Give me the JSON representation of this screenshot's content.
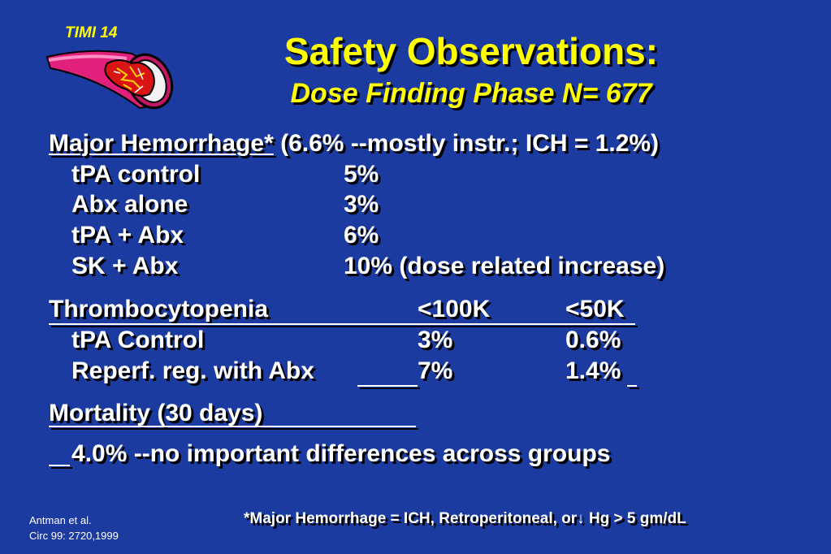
{
  "logo": {
    "label": "TIMI 14",
    "icon": "artery-clot-icon"
  },
  "title": "Safety Observations:",
  "subtitle": "Dose Finding Phase  N= 677",
  "hemorrhage": {
    "heading": "Major Hemorrhage*",
    "note": " (6.6% --mostly instr.;  ICH = 1.2%)",
    "rows": [
      {
        "label": "tPA control",
        "value": "5%"
      },
      {
        "label": "Abx alone",
        "value": "3%"
      },
      {
        "label": "tPA + Abx",
        "value": "6%"
      },
      {
        "label": "SK + Abx",
        "value": "10% (dose related increase)"
      }
    ]
  },
  "thrombo": {
    "heading": "Thrombocytopenia",
    "col1": "<100K",
    "col2": "<50K",
    "rows": [
      {
        "label": "tPA Control",
        "v1": "3%",
        "v2": "0.6%"
      },
      {
        "label": "Reperf. reg. with Abx",
        "v1": "7%",
        "v2": "1.4%"
      }
    ]
  },
  "mortality": {
    "heading": "Mortality (30 days)",
    "text": "4.0% --no important differences across groups"
  },
  "reference": {
    "line1": "Antman et al.",
    "line2": "Circ 99: 2720,1999"
  },
  "footnote": {
    "before": "*Major Hemorrhage = ICH, Retroperitoneal, or",
    "arrow": "↓",
    "after": " Hg > 5 gm/dL"
  }
}
